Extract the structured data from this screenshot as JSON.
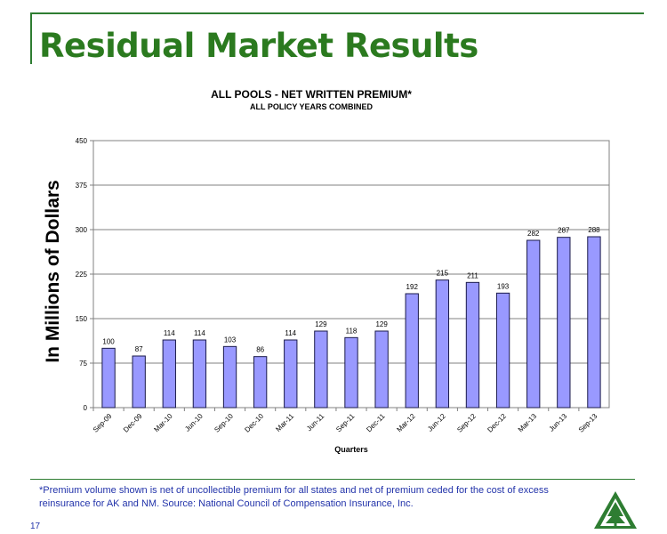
{
  "slide": {
    "title": "Residual Market Results",
    "footnote": "*Premium volume shown is net of uncollectible premium for all states and net of premium ceded for the cost of excess reinsurance for AK and NM.  Source:  National Council of Compensation Insurance, Inc.",
    "page_number": "17"
  },
  "colors": {
    "title": "#2b7a1f",
    "bar_fill": "#9999ff",
    "bar_stroke": "#1a1a4a",
    "footnote": "#2233aa"
  },
  "chart_data": {
    "type": "bar",
    "title": "ALL POOLS - NET WRITTEN PREMIUM*",
    "subtitle": "ALL POLICY YEARS COMBINED",
    "xlabel": "Quarters",
    "ylabel": "In Millions of Dollars",
    "ylim": [
      0,
      450
    ],
    "yticks": [
      0,
      75,
      150,
      225,
      300,
      375,
      450
    ],
    "grid": true,
    "categories": [
      "Sep-09",
      "Dec-09",
      "Mar-10",
      "Jun-10",
      "Sep-10",
      "Dec-10",
      "Mar-11",
      "Jun-11",
      "Sep-11",
      "Dec-11",
      "Mar-12",
      "Jun-12",
      "Sep-12",
      "Dec-12",
      "Mar-13",
      "Jun-13",
      "Sep-13"
    ],
    "values": [
      100,
      87,
      114,
      114,
      103,
      86,
      114,
      129,
      118,
      129,
      192,
      215,
      211,
      193,
      282,
      287,
      288
    ]
  }
}
